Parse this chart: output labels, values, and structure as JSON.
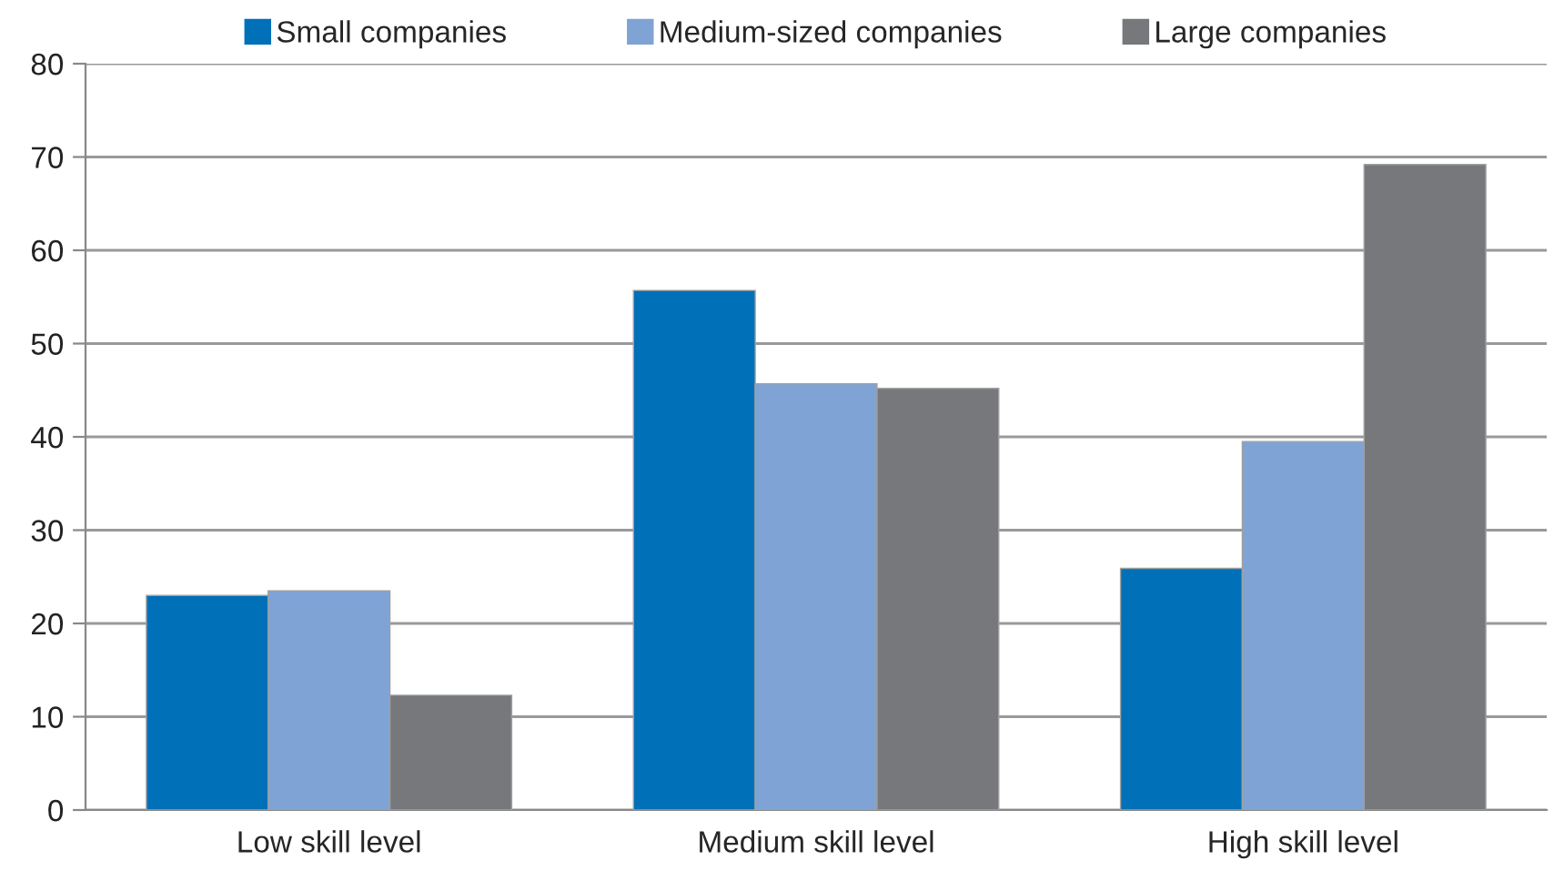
{
  "chart_data": {
    "type": "bar",
    "categories": [
      "Low skill level",
      "Medium skill level",
      "High skill level"
    ],
    "series": [
      {
        "name": "Small companies",
        "color": "#0070b8",
        "values": [
          23,
          55.7,
          25.9
        ]
      },
      {
        "name": "Medium-sized companies",
        "color": "#7fa3d4",
        "values": [
          23.5,
          45.7,
          39.5
        ]
      },
      {
        "name": "Large companies",
        "color": "#77787b",
        "values": [
          12.3,
          45.2,
          69.2
        ]
      }
    ],
    "ylim": [
      0,
      80
    ],
    "yticks": [
      0,
      10,
      20,
      30,
      40,
      50,
      60,
      70,
      80
    ],
    "grid": "y",
    "legend": "top"
  }
}
